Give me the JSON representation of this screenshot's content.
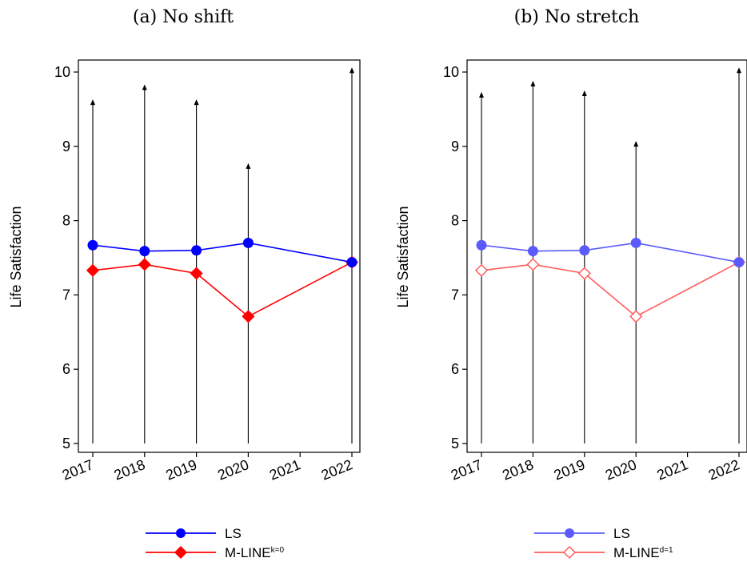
{
  "chart_data": [
    {
      "type": "line",
      "title": "(a) No shift",
      "ylabel": "Life Satisfaction",
      "xlabel": "",
      "x_ticks": [
        "2017",
        "2018",
        "2019",
        "2020",
        "2021",
        "2022"
      ],
      "y_ticks": [
        "5",
        "6",
        "7",
        "8",
        "9",
        "10"
      ],
      "xlim": [
        2017,
        2022
      ],
      "ylim": [
        5,
        10
      ],
      "grid": false,
      "legend_position": "bottom",
      "series": [
        {
          "name": "LS",
          "color": "#0000ff",
          "marker": "filled-circle",
          "x": [
            2017,
            2018,
            2019,
            2020,
            2022
          ],
          "values": [
            7.67,
            7.59,
            7.6,
            7.7,
            7.44
          ]
        },
        {
          "name": "M-LINE",
          "name_superscript": "k=0",
          "color": "#ff0000",
          "marker": "filled-diamond",
          "x": [
            2017,
            2018,
            2019,
            2020,
            2022
          ],
          "values": [
            7.33,
            7.41,
            7.29,
            6.71,
            7.44
          ]
        }
      ],
      "arrows": {
        "x": [
          2017,
          2018,
          2019,
          2020,
          2022
        ],
        "from": 5,
        "to": [
          9.6,
          9.8,
          9.6,
          8.74,
          10.03
        ]
      }
    },
    {
      "type": "line",
      "title": "(b) No stretch",
      "ylabel": "Life Satisfaction",
      "xlabel": "",
      "x_ticks": [
        "2017",
        "2018",
        "2019",
        "2020",
        "2021",
        "2022"
      ],
      "y_ticks": [
        "5",
        "6",
        "7",
        "8",
        "9",
        "10"
      ],
      "xlim": [
        2017,
        2022
      ],
      "ylim": [
        5,
        10
      ],
      "grid": false,
      "legend_position": "bottom",
      "series": [
        {
          "name": "LS",
          "color": "#5a5aff",
          "marker": "filled-circle",
          "x": [
            2017,
            2018,
            2019,
            2020,
            2022
          ],
          "values": [
            7.67,
            7.59,
            7.6,
            7.7,
            7.44
          ]
        },
        {
          "name": "M-LINE",
          "name_superscript": "d=1",
          "color": "#ff5c5c",
          "marker": "hollow-diamond",
          "x": [
            2017,
            2018,
            2019,
            2020,
            2022
          ],
          "values": [
            7.33,
            7.41,
            7.29,
            6.71,
            7.44
          ]
        }
      ],
      "arrows": {
        "x": [
          2017,
          2018,
          2019,
          2020,
          2022
        ],
        "from": 5,
        "to": [
          9.7,
          9.85,
          9.72,
          9.04,
          10.03
        ]
      }
    }
  ]
}
